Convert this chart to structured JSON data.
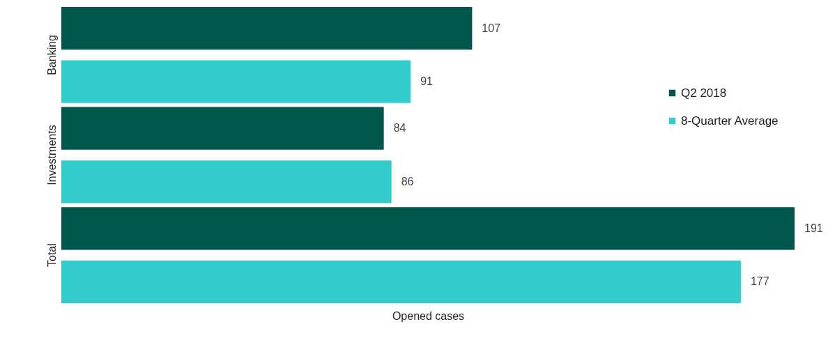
{
  "chart_data": {
    "type": "bar",
    "orientation": "horizontal",
    "xlabel": "Opened cases",
    "categories": [
      "Banking",
      "Investments",
      "Total"
    ],
    "series": [
      {
        "name": "Q2 2018",
        "color": "#00574b",
        "values": [
          107,
          84,
          191
        ]
      },
      {
        "name": "8-Quarter Average",
        "color": "#33cccc",
        "values": [
          91,
          86,
          177
        ]
      }
    ],
    "data_labels": true,
    "legend": "right",
    "tick_labels": "y"
  }
}
